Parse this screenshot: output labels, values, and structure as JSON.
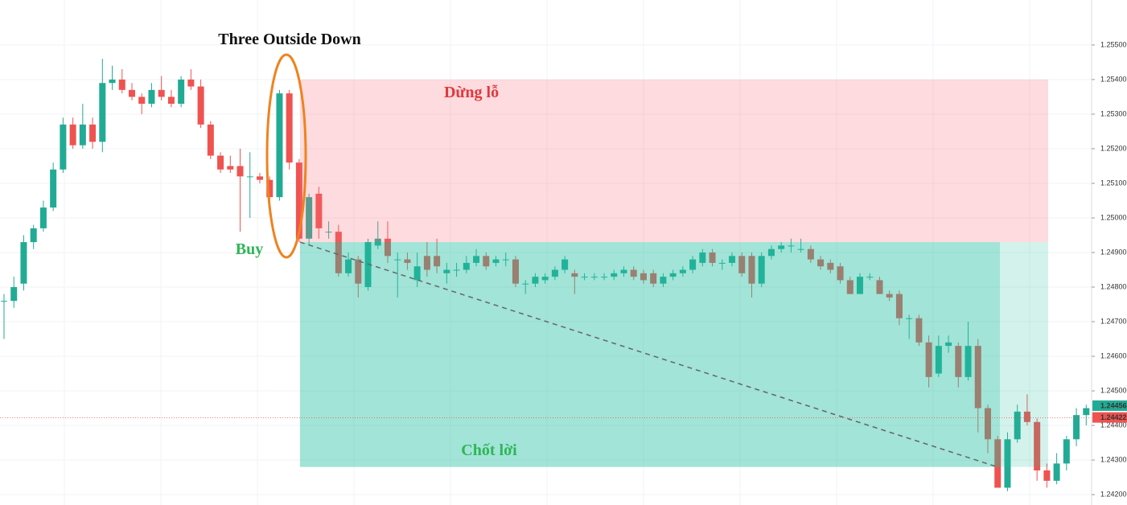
{
  "chart_data": {
    "type": "candlestick",
    "title": "Three Outside Down",
    "up_color": "#22ab94",
    "down_color": "#ef5350",
    "open": [
      1.2476,
      1.2476,
      1.2481,
      1.2493,
      1.2497,
      1.2503,
      1.2514,
      1.2527,
      1.2521,
      1.2527,
      1.2522,
      1.2539,
      1.254,
      1.2537,
      1.2535,
      1.2533,
      1.2537,
      1.2535,
      1.2533,
      1.254,
      1.2538,
      1.2527,
      1.2518,
      1.2515,
      1.2515,
      1.2512,
      1.2512,
      1.2511,
      1.2506,
      1.2536,
      1.2516,
      1.2494,
      1.2507,
      1.2496,
      1.2496,
      1.2484,
      1.2488,
      1.248,
      1.2492,
      1.2494,
      1.2488,
      1.2488,
      1.2482,
      1.2489,
      1.2489,
      1.2484,
      1.2485,
      1.2485,
      1.2487,
      1.2489,
      1.2487,
      1.2488,
      1.2488,
      1.2481,
      1.2481,
      1.2482,
      1.2483,
      1.2485,
      1.2484,
      1.2483,
      1.2483,
      1.2483,
      1.2483,
      1.2484,
      1.2485,
      1.2484,
      1.2484,
      1.2481,
      1.2483,
      1.2484,
      1.2485,
      1.2487,
      1.249,
      1.2487,
      1.2487,
      1.2489,
      1.2489,
      1.2481,
      1.2489,
      1.2491,
      1.2492,
      1.2491,
      1.2491,
      1.2488,
      1.2487,
      1.2486,
      1.2482,
      1.2478,
      1.2483,
      1.2482,
      1.2478,
      1.2478,
      1.2471,
      1.2471,
      1.2464,
      1.2455,
      1.2463,
      1.2463,
      1.2454,
      1.2463,
      1.2445,
      1.2436,
      1.2422,
      1.2436,
      1.2444,
      1.2441,
      1.2427,
      1.2424,
      1.2429,
      1.2436,
      1.2443
    ],
    "high": [
      1.2478,
      1.2483,
      1.2495,
      1.2498,
      1.2505,
      1.2516,
      1.2529,
      1.2529,
      1.2533,
      1.2529,
      1.2546,
      1.2544,
      1.2543,
      1.2539,
      1.2536,
      1.2539,
      1.2541,
      1.2537,
      1.2541,
      1.2543,
      1.254,
      1.2528,
      1.2519,
      1.2518,
      1.252,
      1.2519,
      1.2513,
      1.2512,
      1.2537,
      1.2537,
      1.2517,
      1.2507,
      1.2509,
      1.2499,
      1.2498,
      1.249,
      1.2489,
      1.2494,
      1.2499,
      1.2499,
      1.249,
      1.249,
      1.249,
      1.2493,
      1.2494,
      1.2487,
      1.2487,
      1.2489,
      1.2491,
      1.249,
      1.2489,
      1.249,
      1.2489,
      1.2482,
      1.2484,
      1.2484,
      1.2486,
      1.2489,
      1.2485,
      1.2484,
      1.2484,
      1.2484,
      1.2485,
      1.2486,
      1.2486,
      1.2485,
      1.2485,
      1.2484,
      1.2485,
      1.2486,
      1.2489,
      1.2491,
      1.2491,
      1.2488,
      1.249,
      1.249,
      1.249,
      1.249,
      1.2492,
      1.2493,
      1.2494,
      1.2494,
      1.2492,
      1.2489,
      1.2488,
      1.2487,
      1.2483,
      1.2484,
      1.2484,
      1.2483,
      1.2479,
      1.2479,
      1.2472,
      1.2472,
      1.2466,
      1.2466,
      1.2466,
      1.2464,
      1.247,
      1.2465,
      1.2446,
      1.2437,
      1.2438,
      1.2446,
      1.2449,
      1.2442,
      1.2429,
      1.2432,
      1.2437,
      1.2445,
      1.2446
    ],
    "low": [
      1.2465,
      1.2474,
      1.2479,
      1.2491,
      1.2496,
      1.2502,
      1.2513,
      1.252,
      1.252,
      1.252,
      1.2519,
      1.2537,
      1.2536,
      1.2534,
      1.253,
      1.2532,
      1.2534,
      1.2532,
      1.2532,
      1.2537,
      1.2526,
      1.2517,
      1.2513,
      1.2513,
      1.2496,
      1.25,
      1.251,
      1.2501,
      1.2505,
      1.2514,
      1.2493,
      1.2492,
      1.2494,
      1.2494,
      1.2483,
      1.2483,
      1.2477,
      1.2479,
      1.2491,
      1.2487,
      1.2477,
      1.2485,
      1.248,
      1.2483,
      1.2484,
      1.2481,
      1.2483,
      1.2484,
      1.2486,
      1.2485,
      1.2486,
      1.2486,
      1.248,
      1.2478,
      1.248,
      1.2481,
      1.2482,
      1.2484,
      1.2478,
      1.2482,
      1.2482,
      1.2482,
      1.2482,
      1.2483,
      1.2482,
      1.2481,
      1.248,
      1.248,
      1.2482,
      1.2483,
      1.2484,
      1.2486,
      1.2486,
      1.2485,
      1.2486,
      1.2483,
      1.2477,
      1.248,
      1.2488,
      1.249,
      1.249,
      1.249,
      1.2487,
      1.2485,
      1.2484,
      1.2481,
      1.2478,
      1.2478,
      1.2482,
      1.2478,
      1.2476,
      1.2469,
      1.2465,
      1.2463,
      1.2451,
      1.2454,
      1.2461,
      1.2451,
      1.2453,
      1.2438,
      1.2432,
      1.2422,
      1.2421,
      1.2435,
      1.244,
      1.2424,
      1.2422,
      1.2423,
      1.2427,
      1.2434,
      1.244
    ],
    "close": [
      1.2476,
      1.248,
      1.2493,
      1.2497,
      1.2503,
      1.2514,
      1.2527,
      1.2521,
      1.2527,
      1.2522,
      1.2539,
      1.254,
      1.2537,
      1.2535,
      1.2533,
      1.2537,
      1.2535,
      1.2533,
      1.254,
      1.2538,
      1.2527,
      1.2518,
      1.2514,
      1.2514,
      1.2512,
      1.2512,
      1.2511,
      1.2506,
      1.2536,
      1.2516,
      1.2494,
      1.2506,
      1.2497,
      1.2496,
      1.2484,
      1.2488,
      1.2481,
      1.2493,
      1.2494,
      1.2489,
      1.2488,
      1.2487,
      1.2486,
      1.2485,
      1.2486,
      1.2485,
      1.2485,
      1.2487,
      1.2489,
      1.2486,
      1.2488,
      1.2488,
      1.2481,
      1.2481,
      1.2483,
      1.2483,
      1.2485,
      1.2488,
      1.2483,
      1.2483,
      1.2483,
      1.2483,
      1.2484,
      1.2485,
      1.2483,
      1.2482,
      1.2481,
      1.2483,
      1.2484,
      1.2485,
      1.2488,
      1.249,
      1.2487,
      1.2487,
      1.2489,
      1.2484,
      1.2481,
      1.2489,
      1.2491,
      1.2492,
      1.2492,
      1.2491,
      1.2488,
      1.2486,
      1.2485,
      1.2482,
      1.2478,
      1.2483,
      1.2483,
      1.2478,
      1.2477,
      1.2471,
      1.2471,
      1.2464,
      1.2454,
      1.2463,
      1.2464,
      1.2454,
      1.2463,
      1.2445,
      1.2436,
      1.2422,
      1.2436,
      1.2444,
      1.2441,
      1.2427,
      1.2424,
      1.2429,
      1.2436,
      1.2443,
      1.2445
    ],
    "ylim": [
      1.2417,
      1.2563
    ],
    "yticks": [
      {
        "value": 1.255,
        "label": "1.25500"
      },
      {
        "value": 1.254,
        "label": "1.25400"
      },
      {
        "value": 1.253,
        "label": "1.25300"
      },
      {
        "value": 1.252,
        "label": "1.25200"
      },
      {
        "value": 1.251,
        "label": "1.25100"
      },
      {
        "value": 1.25,
        "label": "1.25000"
      },
      {
        "value": 1.249,
        "label": "1.24900"
      },
      {
        "value": 1.248,
        "label": "1.24800"
      },
      {
        "value": 1.247,
        "label": "1.24700"
      },
      {
        "value": 1.246,
        "label": "1.24600"
      },
      {
        "value": 1.245,
        "label": "1.24500"
      },
      {
        "value": 1.244,
        "label": "1.24400"
      },
      {
        "value": 1.243,
        "label": "1.24300"
      },
      {
        "value": 1.242,
        "label": "1.24200"
      }
    ],
    "grid": true,
    "stop_loss_zone": [
      1.254,
      1.2493
    ],
    "stop_loss_label": "Dừng lỗ",
    "take_profit_zone": [
      1.2493,
      1.2428
    ],
    "take_profit_label": "Chốt lời",
    "entry_label": "Buy",
    "last_price": 1.24456,
    "bid_price": 1.24422
  }
}
